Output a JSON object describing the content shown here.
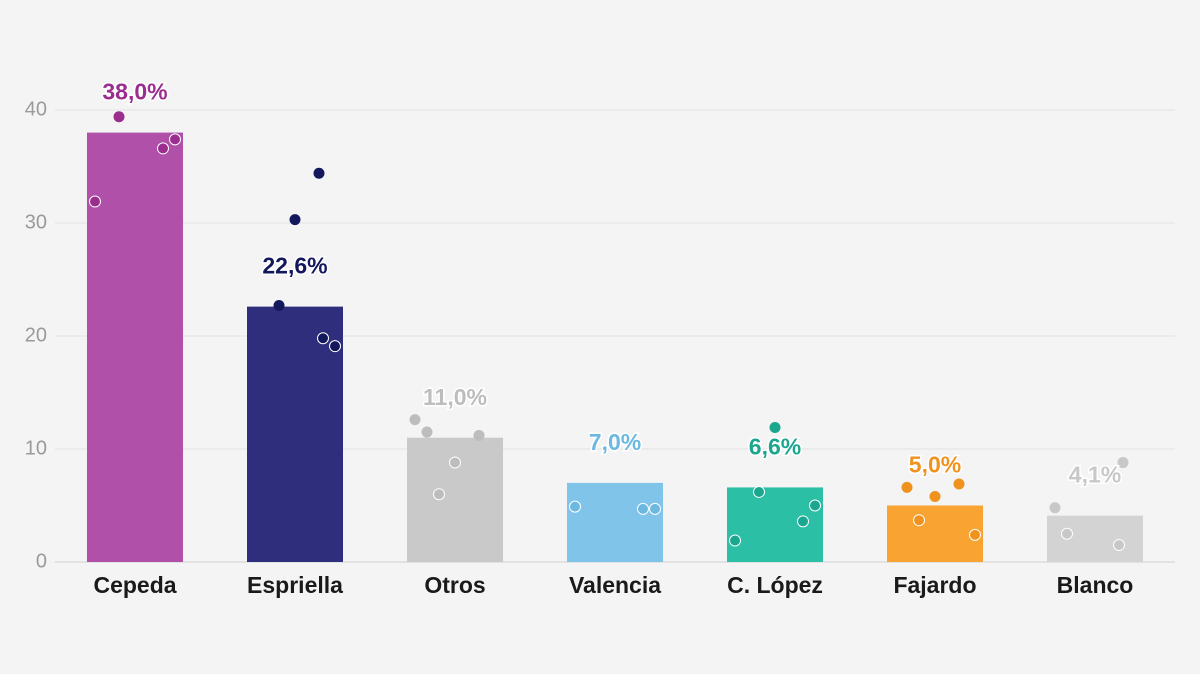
{
  "chart_data": {
    "type": "bar",
    "categories": [
      "Cepeda",
      "Espriella",
      "Otros",
      "Valencia",
      "C. López",
      "Fajardo",
      "Blanco"
    ],
    "values": [
      38.0,
      22.6,
      11.0,
      7.0,
      6.6,
      5.0,
      4.1
    ],
    "value_labels": [
      "38,0%",
      "22,6%",
      "11,0%",
      "7,0%",
      "6,6%",
      "5,0%",
      "4,1%"
    ],
    "colors": [
      "#b050a8",
      "#2e2e7c",
      "#c9c9c9",
      "#80c4ea",
      "#2bbfa5",
      "#f8a332",
      "#d3d3d3"
    ],
    "point_colors": [
      "#9b2d8e",
      "#13185c",
      "#bdbdbd",
      "#6cb8e0",
      "#1aa68f",
      "#f0921e",
      "#c8c8c8"
    ],
    "points": [
      [
        39.4,
        37.4,
        36.6,
        31.9
      ],
      [
        34.4,
        30.3,
        22.7,
        19.1,
        19.8
      ],
      [
        12.6,
        11.5,
        11.2,
        8.8,
        6.0
      ],
      [
        4.7,
        4.7,
        4.9
      ],
      [
        11.9,
        6.2,
        5.0,
        3.6,
        1.9
      ],
      [
        6.6,
        6.9,
        5.8,
        3.7,
        2.4
      ],
      [
        8.8,
        4.8,
        2.5,
        1.5
      ]
    ],
    "ylim": [
      0,
      40
    ],
    "yticks": [
      0,
      10,
      20,
      30,
      40
    ],
    "grid": true
  }
}
